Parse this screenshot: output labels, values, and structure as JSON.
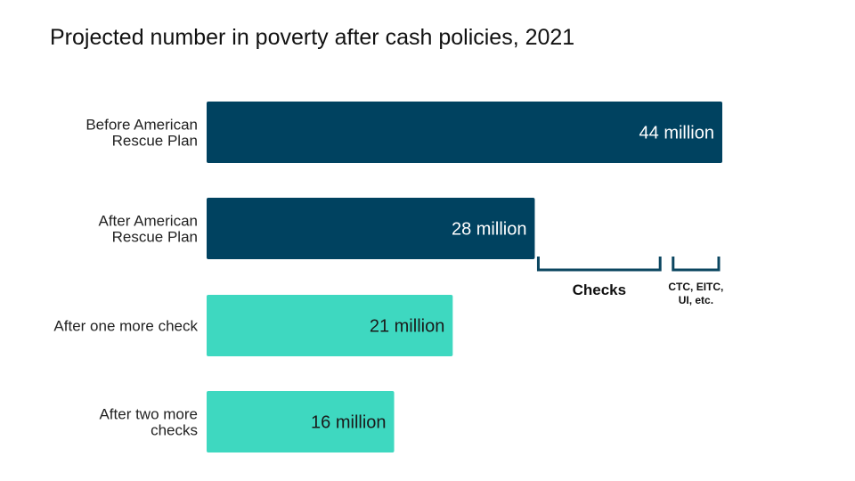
{
  "chart_data": {
    "type": "bar",
    "orientation": "horizontal",
    "title": "Projected number in poverty after cash policies, 2021",
    "xlabel": "",
    "ylabel": "",
    "unit": "million",
    "xlim": [
      0,
      44
    ],
    "grid": false,
    "categories": [
      [
        "Before American",
        "Rescue Plan"
      ],
      [
        "After American",
        "Rescue Plan"
      ],
      [
        "After one more check"
      ],
      [
        "After two more",
        "checks"
      ]
    ],
    "values": [
      44,
      28,
      21,
      16
    ],
    "value_labels": [
      "44 million",
      "28 million",
      "21 million",
      "16 million"
    ],
    "colors": [
      "#004260",
      "#004260",
      "#3ed8c0",
      "#3ed8c0"
    ],
    "label_colors": [
      "#ffffff",
      "#ffffff",
      "#1a1a1a",
      "#1a1a1a"
    ],
    "annotations": [
      {
        "name": "checks",
        "lines": [
          "Checks"
        ],
        "from": 28,
        "to": 39,
        "style": "big"
      },
      {
        "name": "ctc-eitc-ui",
        "lines": [
          "CTC, EITC,",
          "UI, etc."
        ],
        "from": 39.5,
        "to": 44,
        "style": "small"
      }
    ]
  }
}
